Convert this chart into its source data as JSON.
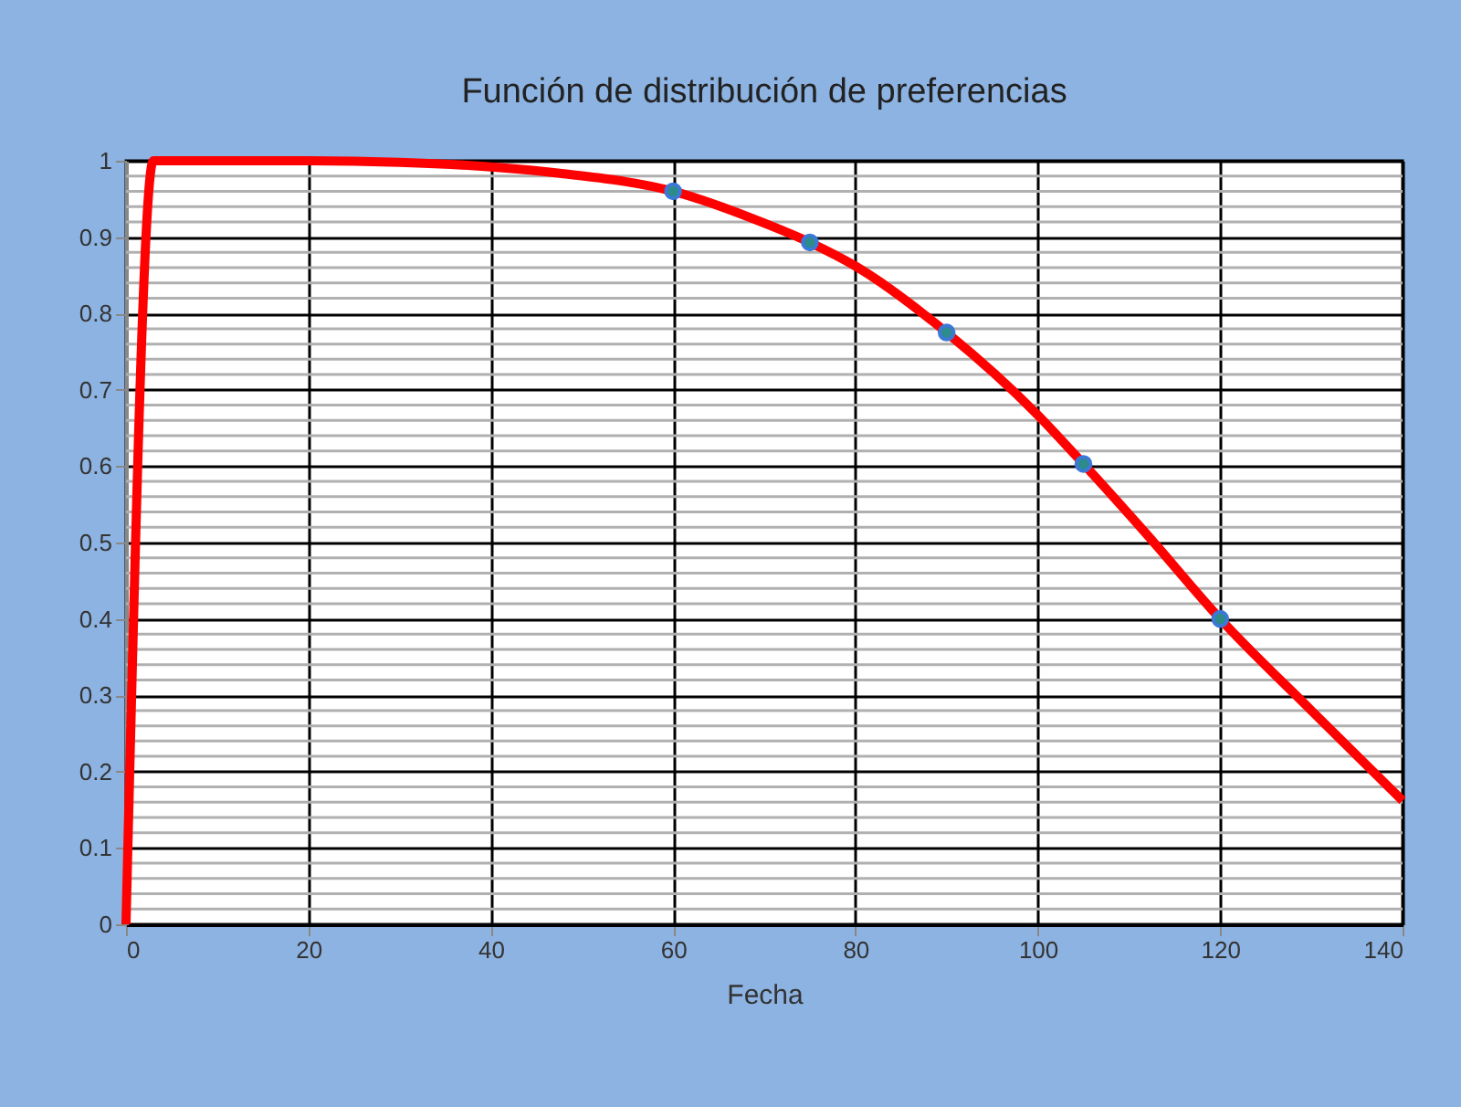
{
  "chart_data": {
    "type": "line",
    "title": "Función de distribución de preferencias",
    "xlabel": "Fecha",
    "series": [
      {
        "color": "#ff0000",
        "marker": "none",
        "x": [
          0,
          3,
          20,
          30,
          40,
          48,
          60,
          69,
          75,
          80,
          90,
          100,
          105,
          112,
          120,
          130,
          140
        ],
        "values": [
          0,
          1,
          1,
          0.998,
          0.992,
          0.983,
          0.96,
          0.923,
          0.893,
          0.862,
          0.775,
          0.667,
          0.603,
          0.51,
          0.4,
          0.28,
          0.162
        ]
      },
      {
        "type": "scatter",
        "color": "#3c78d8",
        "marker": "circle",
        "x": [
          60,
          75,
          90,
          105,
          120
        ],
        "values": [
          0.96,
          0.893,
          0.775,
          0.603,
          0.4
        ]
      }
    ],
    "xlim": [
      0,
      140
    ],
    "xticks": [
      0,
      20,
      40,
      60,
      80,
      100,
      120,
      140
    ],
    "ylim": [
      0,
      1
    ],
    "yticks": [
      0,
      {
        "value": 0.02,
        "label": null
      },
      {
        "value": 0.04,
        "label": null
      },
      {
        "value": 0.06,
        "label": null
      },
      {
        "value": 0.08,
        "label": null
      },
      0.1,
      {
        "value": 0.12,
        "label": null
      },
      {
        "value": 0.14,
        "label": null
      },
      {
        "value": 0.16,
        "label": null
      },
      {
        "value": 0.18,
        "label": null
      },
      0.2,
      {
        "value": 0.22,
        "label": null
      },
      {
        "value": 0.24,
        "label": null
      },
      {
        "value": 0.26,
        "label": null
      },
      {
        "value": 0.28,
        "label": null
      },
      0.3,
      {
        "value": 0.32,
        "label": null
      },
      {
        "value": 0.34,
        "label": null
      },
      {
        "value": 0.36,
        "label": null
      },
      {
        "value": 0.38,
        "label": null
      },
      0.4,
      {
        "value": 0.42,
        "label": null
      },
      {
        "value": 0.44,
        "label": null
      },
      {
        "value": 0.46,
        "label": null
      },
      {
        "value": 0.48,
        "label": null
      },
      0.5,
      {
        "value": 0.52,
        "label": null
      },
      {
        "value": 0.54,
        "label": null
      },
      {
        "value": 0.56,
        "label": null
      },
      {
        "value": 0.58,
        "label": null
      },
      0.6,
      {
        "value": 0.62,
        "label": null
      },
      {
        "value": 0.64,
        "label": null
      },
      {
        "value": 0.66,
        "label": null
      },
      {
        "value": 0.68,
        "label": null
      },
      0.7,
      {
        "value": 0.72,
        "label": null
      },
      {
        "value": 0.74,
        "label": null
      },
      {
        "value": 0.76,
        "label": null
      },
      {
        "value": 0.78,
        "label": null
      },
      0.8,
      {
        "value": 0.82,
        "label": null
      },
      {
        "value": 0.84,
        "label": null
      },
      {
        "value": 0.86,
        "label": null
      },
      {
        "value": 0.88,
        "label": null
      },
      0.9,
      {
        "value": 0.92,
        "label": null
      },
      {
        "value": 0.94,
        "label": null
      },
      {
        "value": 0.96,
        "label": null
      },
      {
        "value": 0.98,
        "label": null
      },
      1
    ],
    "grid": true,
    "line_style": "solid"
  }
}
